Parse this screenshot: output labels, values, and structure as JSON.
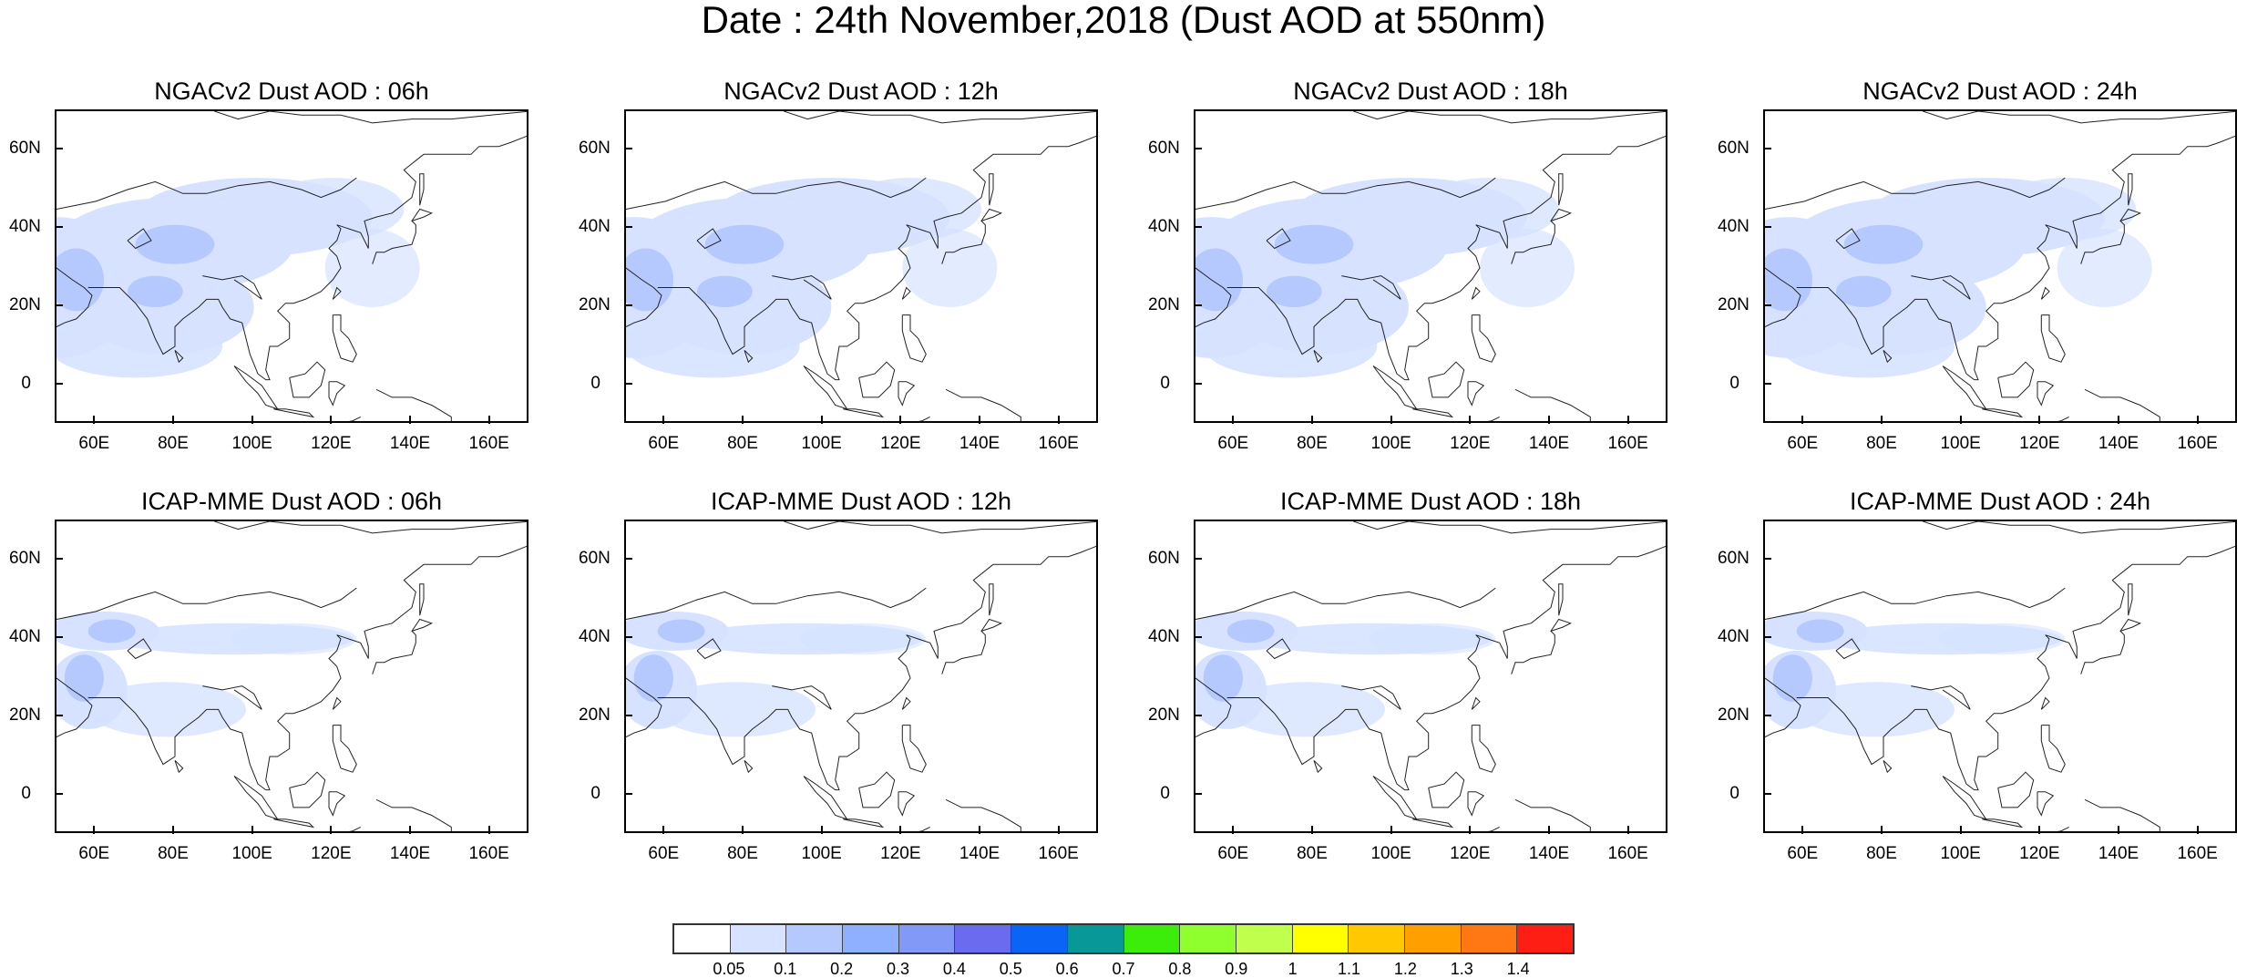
{
  "title": "Date : 24th November,2018 (Dust AOD at 550nm)",
  "panels": [
    {
      "model": "NGACv2",
      "title": "NGACv2 Dust AOD : 06h"
    },
    {
      "model": "NGACv2",
      "title": "NGACv2 Dust AOD : 12h"
    },
    {
      "model": "NGACv2",
      "title": "NGACv2 Dust AOD : 18h"
    },
    {
      "model": "NGACv2",
      "title": "NGACv2 Dust AOD : 24h"
    },
    {
      "model": "ICAP-MME",
      "title": "ICAP-MME Dust AOD : 06h"
    },
    {
      "model": "ICAP-MME",
      "title": "ICAP-MME Dust AOD : 12h"
    },
    {
      "model": "ICAP-MME",
      "title": "ICAP-MME Dust AOD : 18h"
    },
    {
      "model": "ICAP-MME",
      "title": "ICAP-MME Dust AOD : 24h"
    }
  ],
  "lon_range": [
    50,
    170
  ],
  "lat_range": [
    -10,
    70
  ],
  "x_ticks": [
    "60E",
    "80E",
    "100E",
    "120E",
    "140E",
    "160E"
  ],
  "y_ticks": [
    "60N",
    "40N",
    "20N",
    "0"
  ],
  "colorbar": {
    "labels": [
      "0.05",
      "0.1",
      "0.2",
      "0.3",
      "0.4",
      "0.5",
      "0.6",
      "0.7",
      "0.8",
      "0.9",
      "1",
      "1.1",
      "1.2",
      "1.3",
      "1.4"
    ],
    "colors": [
      "#ffffff",
      "#d6e2ff",
      "#b5c9ff",
      "#8fb0ff",
      "#8399f8",
      "#6b6bf0",
      "#0a64f5",
      "#089898",
      "#3ced0c",
      "#8fff2d",
      "#c0ff4c",
      "#ffff00",
      "#ffc800",
      "#ffa000",
      "#ff7814",
      "#ff1e14"
    ]
  }
}
